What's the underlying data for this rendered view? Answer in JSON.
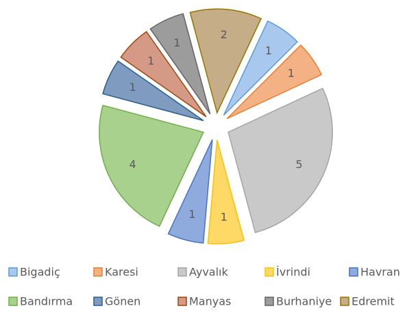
{
  "chart_data": {
    "type": "pie",
    "categories": [
      "Bigadiç",
      "Karesi",
      "Ayvalık",
      "İvrindi",
      "Havran",
      "Bandırma",
      "Gönen",
      "Manyas",
      "Burhaniye",
      "Edremit"
    ],
    "values": [
      1,
      1,
      5,
      1,
      1,
      4,
      1,
      1,
      1,
      2
    ],
    "colors": [
      "#a9c8ee",
      "#f4b183",
      "#c9c9c9",
      "#ffd966",
      "#8faadc",
      "#a9d18e",
      "#7f9bc0",
      "#d59a85",
      "#9c9c9c",
      "#c4ad87"
    ],
    "edge_colors": [
      "#5b9bd5",
      "#ed7d31",
      "#a5a5a5",
      "#ffc000",
      "#4472c4",
      "#70ad47",
      "#255e91",
      "#9e480e",
      "#636363",
      "#997300"
    ],
    "exploded": true,
    "legend": "bottom"
  }
}
